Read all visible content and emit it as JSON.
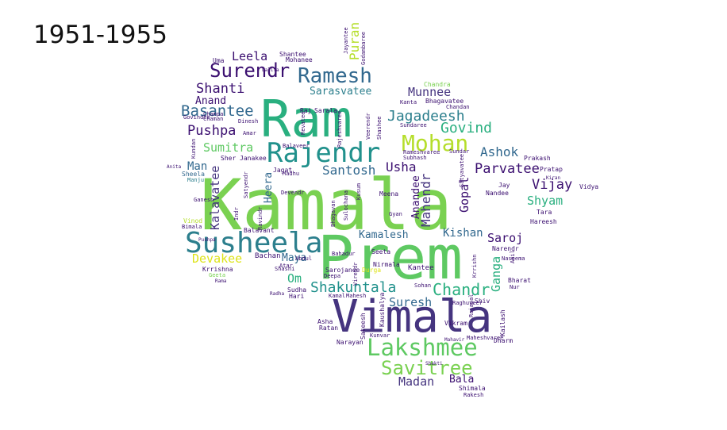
{
  "title": "1951-1955",
  "palette": [
    "#3b0f70",
    "#45347f",
    "#31688e",
    "#2c7f8d",
    "#21918c",
    "#29af7f",
    "#5ec962",
    "#7ad151",
    "#b5de2b",
    "#dde318"
  ],
  "words": [
    {
      "text": "Kamala",
      "color": "#7ad151"
    },
    {
      "text": "Prem",
      "color": "#5ec962"
    },
    {
      "text": "Ram",
      "color": "#29af7f"
    },
    {
      "text": "Vimala",
      "color": "#45347f"
    },
    {
      "text": "Susheela",
      "color": "#2c7f8d"
    },
    {
      "text": "Rajendr",
      "color": "#21918c"
    },
    {
      "text": "Lakshmee",
      "color": "#5ec962"
    },
    {
      "text": "Savitree",
      "color": "#7ad151"
    },
    {
      "text": "Mohan",
      "color": "#b5de2b"
    },
    {
      "text": "Ramesh",
      "color": "#31688e"
    },
    {
      "text": "Surendr",
      "color": "#3b0f70"
    },
    {
      "text": "Shakuntala",
      "color": "#21918c"
    },
    {
      "text": "Jagadeesh",
      "color": "#2c7f8d"
    },
    {
      "text": "Basantee",
      "color": "#31688e"
    },
    {
      "text": "Chandr",
      "color": "#29af7f"
    },
    {
      "text": "Parvatee",
      "color": "#3b0f70"
    },
    {
      "text": "Santosh",
      "color": "#31688e"
    },
    {
      "text": "Govind",
      "color": "#29af7f"
    },
    {
      "text": "Shanti",
      "color": "#3b0f70"
    },
    {
      "text": "Pushpa",
      "color": "#3b0f70"
    },
    {
      "text": "Sumitra",
      "color": "#5ec962"
    },
    {
      "text": "Vijay",
      "color": "#3b0f70"
    },
    {
      "text": "Shyam",
      "color": "#29af7f"
    },
    {
      "text": "Ashok",
      "color": "#31688e"
    },
    {
      "text": "Munnee",
      "color": "#45347f"
    },
    {
      "text": "Usha",
      "color": "#3b0f70"
    },
    {
      "text": "Devakee",
      "color": "#dde318"
    },
    {
      "text": "Suresh",
      "color": "#31688e"
    },
    {
      "text": "Madan",
      "color": "#45347f"
    },
    {
      "text": "Leela",
      "color": "#3b0f70"
    },
    {
      "text": "Sarasvatee",
      "color": "#2c7f8d"
    },
    {
      "text": "Anand",
      "color": "#3b0f70"
    },
    {
      "text": "Kishan",
      "color": "#31688e"
    },
    {
      "text": "Saroj",
      "color": "#3b0f70"
    },
    {
      "text": "Kamalesh",
      "color": "#31688e"
    },
    {
      "text": "Man",
      "color": "#31688e"
    },
    {
      "text": "Maya",
      "color": "#31688e"
    },
    {
      "text": "Om",
      "color": "#29af7f"
    },
    {
      "text": "Bala",
      "color": "#3b0f70"
    },
    {
      "text": "Puran",
      "color": "#b5de2b"
    },
    {
      "text": "Kalavatee",
      "color": "#45347f"
    },
    {
      "text": "Heera",
      "color": "#31688e"
    },
    {
      "text": "Mahendr",
      "color": "#45347f"
    },
    {
      "text": "Anandee",
      "color": "#3b0f70"
    },
    {
      "text": "Gopal",
      "color": "#3b0f70"
    },
    {
      "text": "Ganga",
      "color": "#29af7f"
    },
    {
      "text": "Sheela",
      "color": "#31688e"
    },
    {
      "text": "Manju",
      "color": "#2c7f8d"
    },
    {
      "text": "Krrishna",
      "color": "#3b0f70"
    },
    {
      "text": "Geeta",
      "color": "#7ad151"
    },
    {
      "text": "Rama",
      "color": "#3b0f70"
    },
    {
      "text": "Bimala",
      "color": "#3b0f70"
    },
    {
      "text": "Vinod",
      "color": "#b5de2b"
    },
    {
      "text": "Bachan",
      "color": "#3b0f70"
    },
    {
      "text": "Balavant",
      "color": "#3b0f70"
    },
    {
      "text": "Shashi",
      "color": "#3b0f70"
    },
    {
      "text": "Sudha",
      "color": "#3b0f70"
    },
    {
      "text": "Atar",
      "color": "#3b0f70"
    },
    {
      "text": "Hari",
      "color": "#3b0f70"
    },
    {
      "text": "Sarojanee",
      "color": "#3b0f70"
    },
    {
      "text": "Deepa",
      "color": "#3b0f70"
    },
    {
      "text": "Durga",
      "color": "#dde318"
    },
    {
      "text": "Nirmala",
      "color": "#3b0f70"
    },
    {
      "text": "Seeta",
      "color": "#3b0f70"
    },
    {
      "text": "Kantee",
      "color": "#3b0f70"
    },
    {
      "text": "Sohan",
      "color": "#3b0f70"
    },
    {
      "text": "Kaushalya",
      "color": "#3b0f70"
    },
    {
      "text": "Asha",
      "color": "#3b0f70"
    },
    {
      "text": "Ratan",
      "color": "#3b0f70"
    },
    {
      "text": "Sateesh",
      "color": "#3b0f70"
    },
    {
      "text": "Narayan",
      "color": "#3b0f70"
    },
    {
      "text": "Kunvar",
      "color": "#3b0f70"
    },
    {
      "text": "Vikram",
      "color": "#3b0f70"
    },
    {
      "text": "Maheshvaree",
      "color": "#3b0f70"
    },
    {
      "text": "Dharm",
      "color": "#3b0f70"
    },
    {
      "text": "Kailash",
      "color": "#3b0f70"
    },
    {
      "text": "Shimala",
      "color": "#3b0f70"
    },
    {
      "text": "Rakesh",
      "color": "#3b0f70"
    },
    {
      "text": "Bharat",
      "color": "#3b0f70"
    },
    {
      "text": "Nur",
      "color": "#3b0f70"
    },
    {
      "text": "Shiv",
      "color": "#3b0f70"
    },
    {
      "text": "Rajapal",
      "color": "#3b0f70"
    },
    {
      "text": "Narendr",
      "color": "#3b0f70"
    },
    {
      "text": "Anil",
      "color": "#3b0f70"
    },
    {
      "text": "Tara",
      "color": "#3b0f70"
    },
    {
      "text": "Hareesh",
      "color": "#3b0f70"
    },
    {
      "text": "Vidya",
      "color": "#3b0f70"
    },
    {
      "text": "Pratap",
      "color": "#3b0f70"
    },
    {
      "text": "Prakash",
      "color": "#3b0f70"
    },
    {
      "text": "Jay",
      "color": "#3b0f70"
    },
    {
      "text": "Nandee",
      "color": "#3b0f70"
    },
    {
      "text": "Bhagavatee",
      "color": "#3b0f70"
    },
    {
      "text": "Kanta",
      "color": "#3b0f70"
    },
    {
      "text": "Chandra",
      "color": "#7ad151"
    },
    {
      "text": "Chandan",
      "color": "#3b0f70"
    },
    {
      "text": "Sundaree",
      "color": "#3b0f70"
    },
    {
      "text": "Sundar",
      "color": "#3b0f70"
    },
    {
      "text": "Rameshvaree",
      "color": "#3b0f70"
    },
    {
      "text": "Subhash",
      "color": "#3b0f70"
    },
    {
      "text": "Sarala",
      "color": "#3b0f70"
    },
    {
      "text": "Raj",
      "color": "#3b0f70"
    },
    {
      "text": "Shantee",
      "color": "#3b0f70"
    },
    {
      "text": "Mohanee",
      "color": "#3b0f70"
    },
    {
      "text": "Uma",
      "color": "#3b0f70"
    },
    {
      "text": "Champa",
      "color": "#3b0f70"
    },
    {
      "text": "Chaman",
      "color": "#3b0f70"
    },
    {
      "text": "Dinesh",
      "color": "#3b0f70"
    },
    {
      "text": "Amar",
      "color": "#3b0f70"
    },
    {
      "text": "Govindee",
      "color": "#3b0f70"
    },
    {
      "text": "Kundan",
      "color": "#3b0f70"
    },
    {
      "text": "Sher",
      "color": "#3b0f70"
    },
    {
      "text": "Janakee",
      "color": "#3b0f70"
    },
    {
      "text": "Jagat",
      "color": "#3b0f70"
    },
    {
      "text": "Madhu",
      "color": "#3b0f70"
    },
    {
      "text": "Balaveer",
      "color": "#3b0f70"
    },
    {
      "text": "Devendr",
      "color": "#3b0f70"
    },
    {
      "text": "Bhagavan",
      "color": "#3b0f70"
    },
    {
      "text": "Sulochana",
      "color": "#3b0f70"
    },
    {
      "text": "Meena",
      "color": "#3b0f70"
    },
    {
      "text": "Gyan",
      "color": "#3b0f70"
    },
    {
      "text": "Bahadur",
      "color": "#3b0f70"
    },
    {
      "text": "Virendr",
      "color": "#3b0f70"
    },
    {
      "text": "Veerendr",
      "color": "#3b0f70"
    },
    {
      "text": "Satyavatee",
      "color": "#3b0f70"
    },
    {
      "text": "Rajeshvaree",
      "color": "#3b0f70"
    },
    {
      "text": "Shashee",
      "color": "#3b0f70"
    },
    {
      "text": "Jayantee",
      "color": "#3b0f70"
    },
    {
      "text": "Godambaree",
      "color": "#3b0f70"
    },
    {
      "text": "Revatee",
      "color": "#3b0f70"
    },
    {
      "text": "Raghuveer",
      "color": "#3b0f70"
    },
    {
      "text": "Krrishn",
      "color": "#3b0f70"
    },
    {
      "text": "Naseema",
      "color": "#3b0f70"
    },
    {
      "text": "Indr",
      "color": "#3b0f70"
    },
    {
      "text": "Abdul",
      "color": "#3b0f70"
    },
    {
      "text": "Kamal",
      "color": "#3b0f70"
    },
    {
      "text": "Mahesh",
      "color": "#3b0f70"
    },
    {
      "text": "Kusum",
      "color": "#3b0f70"
    },
    {
      "text": "Ravindr",
      "color": "#3b0f70"
    },
    {
      "text": "Satyendr",
      "color": "#3b0f70"
    },
    {
      "text": "Ganesh",
      "color": "#3b0f70"
    },
    {
      "text": "Anita",
      "color": "#3b0f70"
    },
    {
      "text": "Radha",
      "color": "#3b0f70"
    },
    {
      "text": "Pushpa",
      "color": "#3b0f70"
    },
    {
      "text": "Kiran",
      "color": "#3b0f70"
    },
    {
      "text": "Lalita",
      "color": "#3b0f70"
    },
    {
      "text": "Mahavir",
      "color": "#3b0f70"
    },
    {
      "text": "Shakti",
      "color": "#3b0f70"
    }
  ]
}
